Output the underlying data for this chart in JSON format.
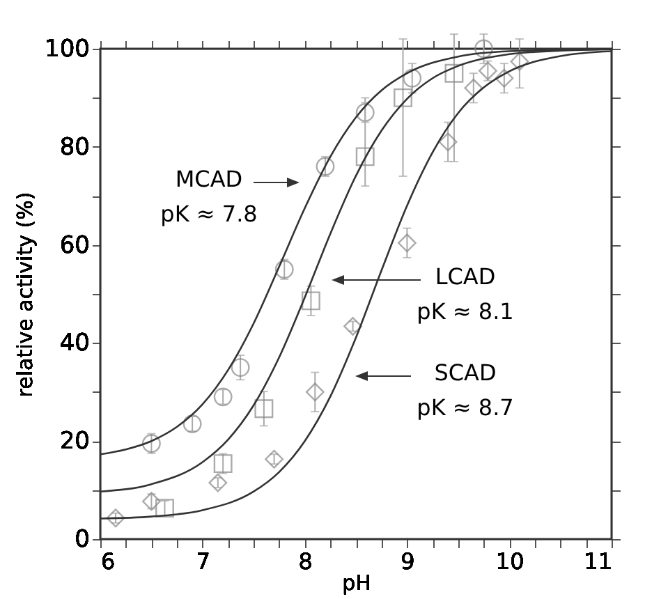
{
  "chart_data": {
    "type": "scatter",
    "xlabel": "pH",
    "ylabel": "relative activity (%)",
    "xlim": [
      6,
      11
    ],
    "ylim": [
      0,
      100
    ],
    "xticks": [
      6,
      {
        "value": 6.25,
        "label": null
      },
      {
        "value": 6.5,
        "label": null
      },
      {
        "value": 6.75,
        "label": null
      },
      7,
      {
        "value": 7.25,
        "label": null
      },
      {
        "value": 7.5,
        "label": null
      },
      {
        "value": 7.75,
        "label": null
      },
      8,
      {
        "value": 8.25,
        "label": null
      },
      {
        "value": 8.5,
        "label": null
      },
      {
        "value": 8.75,
        "label": null
      },
      9,
      {
        "value": 9.25,
        "label": null
      },
      {
        "value": 9.5,
        "label": null
      },
      {
        "value": 9.75,
        "label": null
      },
      10,
      {
        "value": 10.25,
        "label": null
      },
      {
        "value": 10.5,
        "label": null
      },
      {
        "value": 10.75,
        "label": null
      },
      11
    ],
    "yticks": [
      0,
      {
        "value": 10,
        "label": null
      },
      20,
      {
        "value": 30,
        "label": null
      },
      40,
      {
        "value": 50,
        "label": null
      },
      60,
      {
        "value": 70,
        "label": null
      },
      80,
      {
        "value": 90,
        "label": null
      },
      100
    ],
    "grid": false,
    "series": [
      {
        "marker": "circle",
        "color": "#888888",
        "x": [
          6.5,
          6.9,
          7.2,
          7.37,
          7.8,
          8.2,
          8.59,
          9.05,
          9.75
        ],
        "values": [
          19.5,
          23.5,
          29,
          35,
          55,
          76,
          87,
          94,
          100
        ],
        "errors": [
          2,
          1.5,
          1.5,
          2.5,
          2,
          2,
          2,
          3,
          3
        ]
      },
      {
        "marker": "square",
        "color": "#888888",
        "x": [
          6.63,
          7.2,
          7.6,
          8.06,
          8.59,
          8.96,
          9.46
        ],
        "values": [
          6.3,
          15.4,
          26.6,
          48.6,
          78,
          90,
          95
        ],
        "errors": [
          1.5,
          2,
          3.5,
          3,
          [
            72,
            90
          ],
          [
            74,
            102
          ],
          [
            77,
            103
          ]
        ]
      },
      {
        "marker": "diamond",
        "color": "#888888",
        "x": [
          6.15,
          6.5,
          7.15,
          7.7,
          8.1,
          8.47,
          9.0,
          9.4,
          9.65,
          9.79,
          9.95,
          10.1
        ],
        "values": [
          4.3,
          7.7,
          11.5,
          16.3,
          30,
          43.4,
          60.4,
          81,
          92,
          95.5,
          94,
          97.4
        ],
        "errors": [
          1,
          1.5,
          1,
          1,
          4,
          1,
          3,
          4,
          3,
          2,
          3,
          [
            92,
            102
          ]
        ]
      },
      {
        "type": "line",
        "marker": "none",
        "color": "#333333",
        "x": [
          6,
          6.25,
          6.5,
          6.75,
          7,
          7.25,
          7.5,
          7.75,
          8,
          8.25,
          8.5,
          8.75,
          9,
          9.5,
          10,
          11
        ],
        "values": [
          17.3,
          18.3,
          20.0,
          22.9,
          27.5,
          34.5,
          44.0,
          55.6,
          67.5,
          78.0,
          86.0,
          91.5,
          95.0,
          98.4,
          99.5,
          99.9
        ]
      },
      {
        "type": "line",
        "marker": "none",
        "color": "#333333",
        "x": [
          6,
          6.5,
          7,
          7.25,
          7.5,
          7.75,
          8,
          8.25,
          8.5,
          8.75,
          9,
          9.25,
          9.5,
          10,
          10.5,
          11
        ],
        "values": [
          9.7,
          11.2,
          15.7,
          20.3,
          27.3,
          37.1,
          49.3,
          62.3,
          74.1,
          83.3,
          89.8,
          94.0,
          96.5,
          98.9,
          99.6,
          99.9
        ]
      },
      {
        "type": "line",
        "marker": "none",
        "color": "#333333",
        "x": [
          6,
          6.5,
          7,
          7.5,
          7.75,
          8,
          8.25,
          8.5,
          8.75,
          9,
          9.25,
          9.5,
          9.75,
          10,
          10.5,
          11
        ],
        "values": [
          4.2,
          4.6,
          5.9,
          9.7,
          13.7,
          20.0,
          29.1,
          41.1,
          54.8,
          68.0,
          78.9,
          86.9,
          92.1,
          95.4,
          98.5,
          99.5
        ]
      }
    ],
    "annotations": [
      "MCAD\npK ≈ 7.8",
      "LCAD\npK ≈ 8.1",
      "SCAD\npK ≈ 8.7"
    ]
  }
}
